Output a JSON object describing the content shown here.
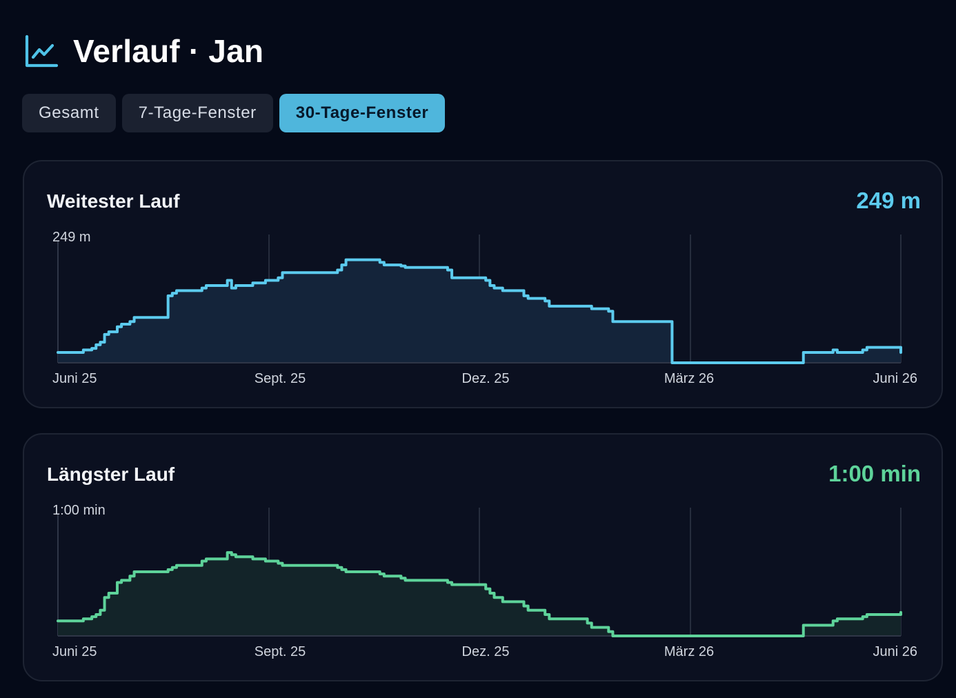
{
  "header": {
    "title": "Verlauf · Jan",
    "icon": "line-chart-icon",
    "accent": "#4fc3e8"
  },
  "tabs": [
    {
      "label": "Gesamt",
      "active": false
    },
    {
      "label": "7-Tage-Fenster",
      "active": false
    },
    {
      "label": "30-Tage-Fenster",
      "active": true
    }
  ],
  "cards": [
    {
      "title": "Weitester Lauf",
      "value": "249 m",
      "color": "#5ccbee",
      "fill": "#14243a"
    },
    {
      "title": "Längster Lauf",
      "value": "1:00 min",
      "color": "#5ed39a",
      "fill": "#132429"
    }
  ],
  "chart_data": [
    {
      "type": "area",
      "title": "Weitester Lauf",
      "ymax_label": "249 m",
      "x_tick_labels": [
        "Juni 25",
        "Sept. 25",
        "Dez. 25",
        "März 26",
        "Juni 26"
      ],
      "ylim": [
        0,
        249
      ],
      "step": true,
      "x": [
        0,
        5,
        6,
        8,
        9,
        10,
        11,
        12,
        14,
        15,
        17,
        18,
        26,
        27,
        28,
        34,
        35,
        40,
        41,
        42,
        46,
        49,
        52,
        53,
        66,
        67,
        68,
        76,
        77,
        81,
        82,
        92,
        93,
        101,
        102,
        103,
        105,
        110,
        111,
        115,
        116,
        125,
        126,
        130,
        131,
        145,
        146,
        150,
        151,
        152,
        153,
        154,
        156,
        162,
        163,
        164,
        175,
        176,
        183,
        184,
        190,
        191,
        199
      ],
      "y": [
        20,
        20,
        25,
        28,
        35,
        40,
        55,
        60,
        70,
        75,
        80,
        88,
        130,
        135,
        140,
        145,
        150,
        160,
        145,
        150,
        155,
        160,
        165,
        175,
        180,
        190,
        200,
        195,
        190,
        188,
        185,
        180,
        165,
        160,
        150,
        145,
        140,
        130,
        125,
        120,
        110,
        110,
        105,
        100,
        80,
        0,
        0,
        0,
        0,
        0,
        0,
        0,
        0,
        0,
        0,
        0,
        0,
        20,
        25,
        20,
        25,
        30,
        20
      ]
    },
    {
      "type": "area",
      "title": "Längster Lauf",
      "ymax_label": "1:00 min",
      "x_tick_labels": [
        "Juni 25",
        "Sept. 25",
        "Dez. 25",
        "März 26",
        "Juni 26"
      ],
      "ylim": [
        0,
        60
      ],
      "step": true,
      "x": [
        0,
        5,
        6,
        8,
        9,
        10,
        11,
        12,
        14,
        15,
        17,
        18,
        26,
        27,
        28,
        34,
        35,
        40,
        41,
        42,
        46,
        49,
        52,
        53,
        66,
        67,
        68,
        76,
        77,
        81,
        82,
        92,
        93,
        101,
        102,
        103,
        105,
        110,
        111,
        115,
        116,
        125,
        126,
        130,
        131,
        145,
        146,
        150,
        151,
        152,
        153,
        154,
        156,
        162,
        163,
        164,
        175,
        176,
        183,
        184,
        190,
        191,
        199
      ],
      "y": [
        7,
        7,
        8,
        9,
        10,
        12,
        18,
        20,
        25,
        26,
        28,
        30,
        31,
        32,
        33,
        35,
        36,
        39,
        38,
        37,
        36,
        35,
        34,
        33,
        32,
        31,
        30,
        29,
        28,
        27,
        26,
        25,
        24,
        22,
        20,
        18,
        16,
        14,
        12,
        10,
        8,
        6,
        4,
        2,
        0,
        0,
        0,
        0,
        0,
        0,
        0,
        0,
        0,
        0,
        0,
        0,
        0,
        5,
        7,
        8,
        9,
        10,
        11
      ]
    }
  ]
}
